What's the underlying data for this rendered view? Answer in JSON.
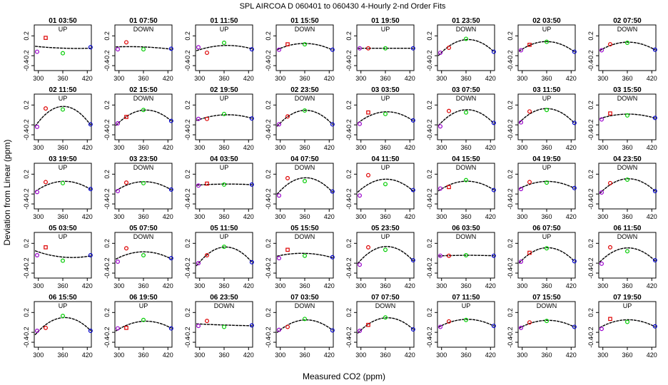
{
  "figure": {
    "title": "SPL   AIRCOA D    060401 to 060430   4-Hourly 2-nd Order Fits",
    "xlabel": "Measured CO2 (ppm)",
    "ylabel": "Deviation from Linear (ppm)"
  },
  "colors": {
    "curve": "#000000",
    "std_low": "#9900cc",
    "std_midlow": "#dd0000",
    "std_mid": "#00cc00",
    "std_high": "#0000cc"
  },
  "chart_data": {
    "type": "scatter",
    "description_of_panels": "40 small multiples, each with 4 standard points and a fitted 2nd-order curve",
    "x_ticks": [
      300,
      360,
      420
    ],
    "y_ticks": [
      0.2,
      -0.2,
      -0.4
    ],
    "y_tick_labels": [
      "0.2",
      "-0.2",
      "-0.4"
    ],
    "xlim": [
      290,
      430
    ],
    "ylim": [
      -0.5,
      0.42
    ],
    "standard_x": [
      297,
      318,
      360,
      428
    ],
    "panels": [
      {
        "title": "01 03:50",
        "dir": "UP",
        "y": [
          -0.12,
          0.16,
          -0.15,
          -0.03
        ]
      },
      {
        "title": "01 07:50",
        "dir": "DOWN",
        "y": [
          -0.07,
          0.07,
          -0.07,
          -0.06
        ]
      },
      {
        "title": "01 11:50",
        "dir": "UP",
        "y": [
          -0.03,
          -0.14,
          0.06,
          -0.07
        ]
      },
      {
        "title": "01 15:50",
        "dir": "DOWN",
        "y": [
          -0.08,
          0.03,
          0.03,
          -0.08
        ]
      },
      {
        "title": "01 19:50",
        "dir": "UP",
        "y": [
          -0.05,
          -0.05,
          -0.05,
          -0.05
        ]
      },
      {
        "title": "01 23:50",
        "dir": "DOWN",
        "y": [
          -0.14,
          -0.04,
          0.14,
          -0.12
        ]
      },
      {
        "title": "02 03:50",
        "dir": "UP",
        "y": [
          -0.09,
          0.02,
          0.08,
          -0.12
        ]
      },
      {
        "title": "02 07:50",
        "dir": "DOWN",
        "y": [
          -0.09,
          0.03,
          0.06,
          -0.08
        ]
      },
      {
        "title": "02 11:50",
        "dir": "UP",
        "y": [
          -0.24,
          0.13,
          0.11,
          -0.19
        ]
      },
      {
        "title": "02 15:50",
        "dir": "DOWN",
        "y": [
          -0.17,
          -0.04,
          0.1,
          -0.12
        ]
      },
      {
        "title": "02 19:50",
        "dir": "UP",
        "y": [
          -0.08,
          -0.08,
          0.02,
          -0.07
        ]
      },
      {
        "title": "02 23:50",
        "dir": "DOWN",
        "y": [
          -0.19,
          -0.03,
          0.09,
          -0.19
        ]
      },
      {
        "title": "03 03:50",
        "dir": "UP",
        "y": [
          -0.18,
          0.05,
          0.02,
          -0.11
        ]
      },
      {
        "title": "03 07:50",
        "dir": "DOWN",
        "y": [
          -0.23,
          0.08,
          0.05,
          -0.16
        ]
      },
      {
        "title": "03 11:50",
        "dir": "UP",
        "y": [
          -0.15,
          0.07,
          0.1,
          -0.16
        ]
      },
      {
        "title": "03 15:50",
        "dir": "DOWN",
        "y": [
          -0.09,
          0.03,
          -0.01,
          -0.06
        ]
      },
      {
        "title": "03 19:50",
        "dir": "UP",
        "y": [
          -0.16,
          0.04,
          0.02,
          -0.1
        ]
      },
      {
        "title": "03 23:50",
        "dir": "DOWN",
        "y": [
          -0.14,
          0.03,
          0.02,
          -0.11
        ]
      },
      {
        "title": "04 03:50",
        "dir": "UP",
        "y": [
          -0.03,
          0.01,
          -0.01,
          -0.01
        ]
      },
      {
        "title": "04 07:50",
        "dir": "DOWN",
        "y": [
          -0.23,
          0.12,
          0.06,
          -0.15
        ]
      },
      {
        "title": "04 11:50",
        "dir": "UP",
        "y": [
          -0.23,
          0.18,
          0.0,
          -0.12
        ]
      },
      {
        "title": "04 15:50",
        "dir": "DOWN",
        "y": [
          -0.09,
          -0.06,
          0.08,
          -0.12
        ]
      },
      {
        "title": "04 19:50",
        "dir": "UP",
        "y": [
          -0.1,
          0.04,
          0.03,
          -0.08
        ]
      },
      {
        "title": "04 23:50",
        "dir": "DOWN",
        "y": [
          -0.17,
          0.02,
          0.09,
          -0.14
        ]
      },
      {
        "title": "05 03:50",
        "dir": "UP",
        "y": [
          -0.04,
          0.12,
          -0.15,
          -0.04
        ]
      },
      {
        "title": "05 07:50",
        "dir": "DOWN",
        "y": [
          -0.17,
          0.1,
          -0.04,
          -0.1
        ]
      },
      {
        "title": "05 11:50",
        "dir": "UP",
        "y": [
          -0.2,
          -0.04,
          0.13,
          -0.18
        ]
      },
      {
        "title": "05 15:50",
        "dir": "DOWN",
        "y": [
          -0.1,
          0.07,
          -0.05,
          -0.08
        ]
      },
      {
        "title": "05 23:50",
        "dir": "UP",
        "y": [
          -0.23,
          0.12,
          0.07,
          -0.14
        ]
      },
      {
        "title": "06 03:50",
        "dir": "DOWN",
        "y": [
          -0.05,
          -0.05,
          -0.04,
          -0.05
        ]
      },
      {
        "title": "06 07:50",
        "dir": "UP",
        "y": [
          -0.17,
          0.01,
          0.1,
          -0.16
        ]
      },
      {
        "title": "06 11:50",
        "dir": "DOWN",
        "y": [
          -0.21,
          0.12,
          0.04,
          -0.14
        ]
      },
      {
        "title": "06 15:50",
        "dir": "UP",
        "y": [
          -0.17,
          -0.11,
          0.13,
          -0.17
        ]
      },
      {
        "title": "06 19:50",
        "dir": "UP",
        "y": [
          -0.12,
          -0.11,
          0.05,
          -0.12
        ]
      },
      {
        "title": "06 23:50",
        "dir": "DOWN",
        "y": [
          -0.07,
          0.03,
          -0.09,
          -0.06
        ]
      },
      {
        "title": "07 03:50",
        "dir": "DOWN",
        "y": [
          -0.15,
          -0.09,
          0.07,
          -0.16
        ]
      },
      {
        "title": "07 07:50",
        "dir": "DOWN",
        "y": [
          -0.17,
          -0.05,
          0.1,
          -0.14
        ]
      },
      {
        "title": "07 11:50",
        "dir": "UP",
        "y": [
          -0.09,
          0.02,
          0.05,
          -0.07
        ]
      },
      {
        "title": "07 15:50",
        "dir": "DOWN",
        "y": [
          -0.11,
          0.0,
          0.03,
          -0.09
        ]
      },
      {
        "title": "07 19:50",
        "dir": "UP",
        "y": [
          -0.13,
          0.07,
          0.01,
          -0.08
        ]
      }
    ]
  }
}
